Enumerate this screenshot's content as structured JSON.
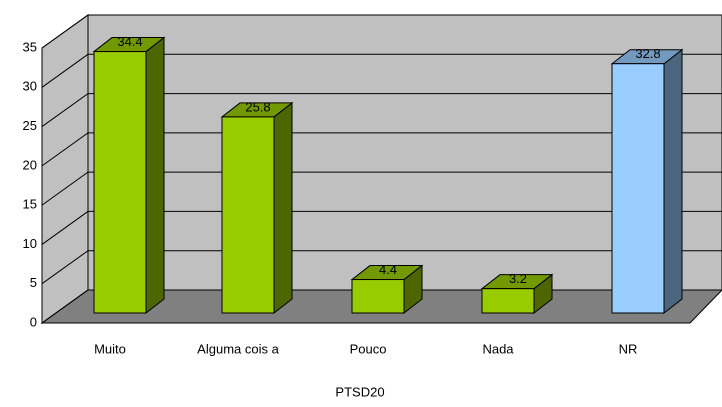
{
  "chart_data": {
    "type": "bar3d",
    "x_label": "PTSD20",
    "categories": [
      "Muito",
      "Alguma cois a",
      "Pouco",
      "Nada",
      "NR"
    ],
    "values": [
      34.4,
      25.8,
      4.4,
      3.2,
      32.8
    ],
    "colors": [
      "#99cc00",
      "#99cc00",
      "#99cc00",
      "#99cc00",
      "#99ccff"
    ],
    "ylim": [
      0,
      35
    ],
    "yticks": [
      0,
      5,
      10,
      15,
      20,
      25,
      30,
      35
    ],
    "grid": true
  }
}
